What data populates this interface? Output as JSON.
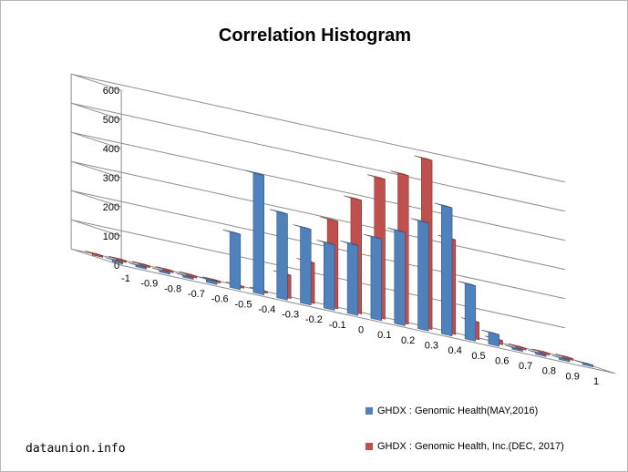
{
  "chart_data": {
    "type": "bar",
    "title": "Correlation Histogram",
    "categories": [
      "-1",
      "-0.9",
      "-0.8",
      "-0.7",
      "-0.6",
      "-0.5",
      "-0.4",
      "-0.3",
      "-0.2",
      "-0.1",
      "0",
      "0.1",
      "0.2",
      "0.3",
      "0.4",
      "0.5",
      "0.6",
      "0.7",
      "0.8",
      "0.9",
      "1"
    ],
    "series": [
      {
        "name": "GHDX : Genomic Health(MAY,2016)",
        "color": "#4f81bd",
        "values": [
          0,
          0,
          0,
          0,
          10,
          190,
          410,
          295,
          260,
          225,
          240,
          280,
          320,
          370,
          440,
          190,
          40,
          0,
          0,
          0,
          0
        ]
      },
      {
        "name": "GHDX : Genomic Health, Inc.(DEC, 2017)",
        "color": "#c0504d",
        "values": [
          0,
          0,
          0,
          0,
          0,
          0,
          0,
          0,
          80,
          140,
          300,
          390,
          480,
          510,
          580,
          325,
          60,
          15,
          0,
          0,
          0
        ]
      }
    ],
    "yticks": [
      "600",
      "500",
      "400",
      "300",
      "200",
      "100",
      "0"
    ],
    "ylim": [
      0,
      600
    ],
    "grid": true,
    "legend": "bottom-right"
  },
  "watermark": "dataunion.info"
}
